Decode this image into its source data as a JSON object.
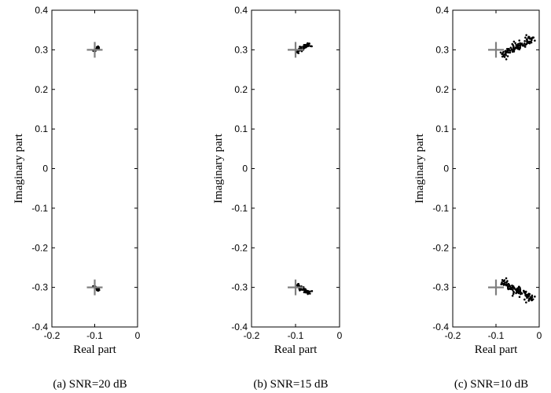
{
  "figure": {
    "panels": [
      {
        "caption": "(a)  SNR=20 dB",
        "xlabel": "Real part",
        "ylabel": "Imaginary part"
      },
      {
        "caption": "(b)  SNR=15 dB",
        "xlabel": "Real part",
        "ylabel": "Imaginary part"
      },
      {
        "caption": "(c)  SNR=10 dB",
        "xlabel": "Real part",
        "ylabel": "Imaginary part"
      }
    ]
  },
  "chart_data": [
    {
      "type": "scatter",
      "title": "",
      "caption": "(a)  SNR=20 dB",
      "xlabel": "Real part",
      "ylabel": "Imaginary part",
      "xlim": [
        -0.2,
        0
      ],
      "ylim": [
        -0.4,
        0.4
      ],
      "xticks": [
        "-0.2",
        "-0.1",
        "0"
      ],
      "yticks": [
        "-0.4",
        "-0.3",
        "-0.2",
        "-0.1",
        "0",
        "0.1",
        "0.2",
        "0.3",
        "0.4"
      ],
      "grid": false,
      "marker_color": "#000000",
      "reference_color": "#808080",
      "series": [
        {
          "marker": "plus",
          "values": [
            [
              -0.1,
              0.3
            ],
            [
              -0.1,
              -0.3
            ]
          ]
        },
        {
          "marker": "dot",
          "cluster_from": [
            -0.103,
            0.297
          ],
          "cluster_to": [
            -0.09,
            0.306
          ],
          "spread": 0.002,
          "count": 25,
          "mirror": true
        }
      ]
    },
    {
      "type": "scatter",
      "title": "",
      "caption": "(b)  SNR=15 dB",
      "xlabel": "Real part",
      "ylabel": "Imaginary part",
      "xlim": [
        -0.2,
        0
      ],
      "ylim": [
        -0.4,
        0.4
      ],
      "xticks": [
        "-0.2",
        "-0.1",
        "0"
      ],
      "yticks": [
        "-0.4",
        "-0.3",
        "-0.2",
        "-0.1",
        "0",
        "0.1",
        "0.2",
        "0.3",
        "0.4"
      ],
      "grid": false,
      "marker_color": "#000000",
      "reference_color": "#808080",
      "series": [
        {
          "marker": "plus",
          "values": [
            [
              -0.1,
              0.3
            ],
            [
              -0.1,
              -0.3
            ]
          ]
        },
        {
          "marker": "dot",
          "cluster_from": [
            -0.1,
            0.293
          ],
          "cluster_to": [
            -0.07,
            0.313
          ],
          "spread": 0.003,
          "count": 55,
          "mirror": true
        }
      ]
    },
    {
      "type": "scatter",
      "title": "",
      "caption": "(c)  SNR=10 dB",
      "xlabel": "Real part",
      "ylabel": "Imaginary part",
      "xlim": [
        -0.2,
        0
      ],
      "ylim": [
        -0.4,
        0.4
      ],
      "xticks": [
        "-0.2",
        "-0.1",
        "0"
      ],
      "yticks": [
        "-0.4",
        "-0.3",
        "-0.2",
        "-0.1",
        "0",
        "0.1",
        "0.2",
        "0.3",
        "0.4"
      ],
      "grid": false,
      "marker_color": "#000000",
      "reference_color": "#808080",
      "series": [
        {
          "marker": "plus",
          "values": [
            [
              -0.1,
              0.3
            ],
            [
              -0.1,
              -0.3
            ]
          ]
        },
        {
          "marker": "dot",
          "cluster_from": [
            -0.09,
            0.285
          ],
          "cluster_to": [
            -0.015,
            0.33
          ],
          "spread": 0.005,
          "count": 110,
          "mirror": true
        }
      ]
    }
  ]
}
